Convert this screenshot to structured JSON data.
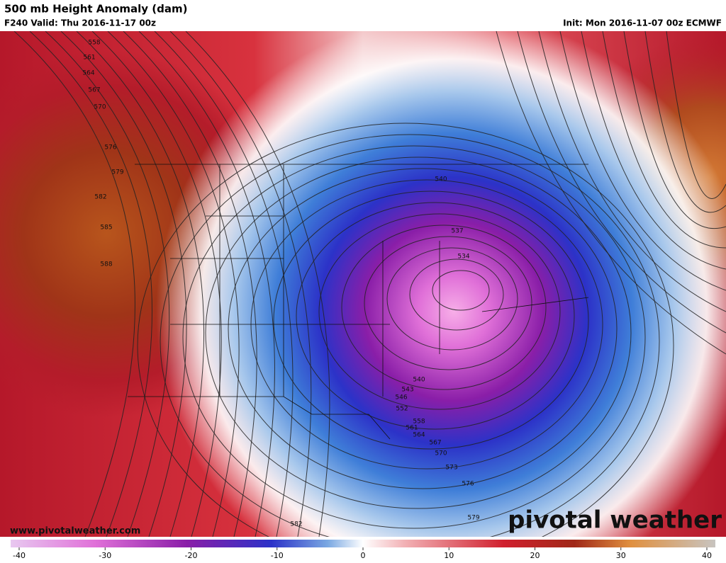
{
  "header": {
    "title": "500 mb Height Anomaly (dam)",
    "valid": "F240 Valid: Thu 2016-11-17 00z",
    "init": "Init: Mon 2016-11-07 00z ECMWF"
  },
  "contour_labels": [
    558,
    561,
    564,
    567,
    570,
    576,
    579,
    582,
    585,
    588,
    582,
    540,
    537,
    534,
    540,
    543,
    546,
    552,
    558,
    561,
    564,
    567,
    570,
    573,
    576,
    579
  ],
  "footer": {
    "website": "www.pivotalweather.com",
    "logo": "pivotal weather"
  },
  "colorbar": {
    "ticks": [
      -40,
      -30,
      -20,
      -10,
      0,
      10,
      20,
      30,
      40
    ]
  }
}
